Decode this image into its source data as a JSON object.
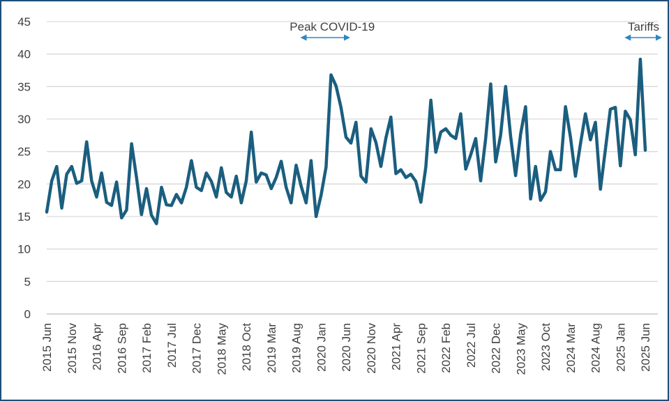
{
  "chart_data": {
    "type": "line",
    "title": "",
    "xlabel": "",
    "ylabel": "",
    "ylim": [
      0,
      45
    ],
    "y_ticks": [
      0,
      5,
      10,
      15,
      20,
      25,
      30,
      35,
      40,
      45
    ],
    "grid": "horizontal",
    "legend": "none",
    "x_tick_labels": [
      "2015 Jun",
      "2015 Nov",
      "2016 Apr",
      "2016 Sep",
      "2017 Feb",
      "2017 Jul",
      "2017 Dec",
      "2018 May",
      "2018 Oct",
      "2019 Mar",
      "2019 Aug",
      "2020 Jan",
      "2020 Jun",
      "2020 Nov",
      "2021 Apr",
      "2021 Sep",
      "2022 Feb",
      "2022 Jul",
      "2022 Dec",
      "2023 May",
      "2023 Oct",
      "2024 Mar",
      "2024 Aug",
      "2025 Jan",
      "2025 Jun"
    ],
    "line_color": "#1b5e7f",
    "series": [
      {
        "start": "2015 Jun",
        "frequency": "monthly",
        "values": [
          15.7,
          20.5,
          22.7,
          16.3,
          21.5,
          22.7,
          20.1,
          20.5,
          26.5,
          20.5,
          18.0,
          21.7,
          17.2,
          16.7,
          20.3,
          14.8,
          16.0,
          26.2,
          21.0,
          15.3,
          19.3,
          15.2,
          13.9,
          19.5,
          16.8,
          16.7,
          18.4,
          17.1,
          19.5,
          23.6,
          19.5,
          19.0,
          21.7,
          20.4,
          18.0,
          22.5,
          18.7,
          18.0,
          21.2,
          17.1,
          20.5,
          28.0,
          20.3,
          21.7,
          21.4,
          19.3,
          21.0,
          23.5,
          19.5,
          17.1,
          22.9,
          19.7,
          17.1,
          23.6,
          15.0,
          18.3,
          22.6,
          36.8,
          35.1,
          31.8,
          27.2,
          26.3,
          29.5,
          21.2,
          20.3,
          28.5,
          26.4,
          22.7,
          27.1,
          30.3,
          21.6,
          22.2,
          21.0,
          21.5,
          20.4,
          17.2,
          22.6,
          32.9,
          24.9,
          28.0,
          28.5,
          27.5,
          27.0,
          30.8,
          22.3,
          24.5,
          27.0,
          20.5,
          27.0,
          35.4,
          23.4,
          27.5,
          35.0,
          27.3,
          21.3,
          27.7,
          31.9,
          17.7,
          22.7,
          17.5,
          18.8,
          25.0,
          22.2,
          22.2,
          31.9,
          27.2,
          21.2,
          26.2,
          30.8,
          26.8,
          29.5,
          19.2,
          25.3,
          31.5,
          31.8,
          22.8,
          31.2,
          29.9,
          24.5,
          39.2,
          25.2
        ]
      }
    ],
    "annotations": [
      {
        "text": "Peak COVID-19",
        "from": "2019 Aug",
        "to": "2020 Jun"
      },
      {
        "text": "Tariffs",
        "from": "2025 Jan",
        "to": "2025 Jun"
      }
    ]
  }
}
